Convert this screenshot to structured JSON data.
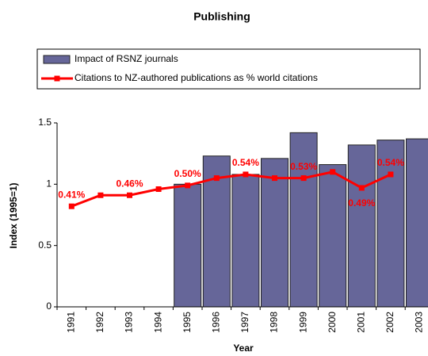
{
  "chart_data": {
    "type": "bar+line",
    "title": "Publishing",
    "xlabel": "Year",
    "ylabel": "Index (1995=1)",
    "categories": [
      "1991",
      "1992",
      "1993",
      "1994",
      "1995",
      "1996",
      "1997",
      "1998",
      "1999",
      "2000",
      "2001",
      "2002",
      "2003"
    ],
    "series": [
      {
        "name": "Impact of RSNZ journals",
        "type": "bar",
        "color": "#666699",
        "values": [
          null,
          null,
          null,
          null,
          1.0,
          1.23,
          1.08,
          1.21,
          1.42,
          1.16,
          1.32,
          1.36,
          1.37
        ]
      },
      {
        "name": "Citations to NZ-authored publications as % world citations",
        "type": "line",
        "color": "#ff0000",
        "values": [
          0.82,
          0.91,
          0.91,
          0.96,
          0.99,
          1.05,
          1.08,
          1.05,
          1.05,
          1.1,
          0.97,
          1.08,
          null
        ],
        "point_labels": [
          "0.41%",
          null,
          "0.46%",
          null,
          "0.50%",
          null,
          "0.54%",
          null,
          "0.53%",
          null,
          "0.49%",
          "0.54%",
          null
        ]
      }
    ],
    "ylim": [
      0,
      1.5
    ],
    "yticks": [
      0,
      0.5,
      1,
      1.5
    ],
    "grid": false
  }
}
